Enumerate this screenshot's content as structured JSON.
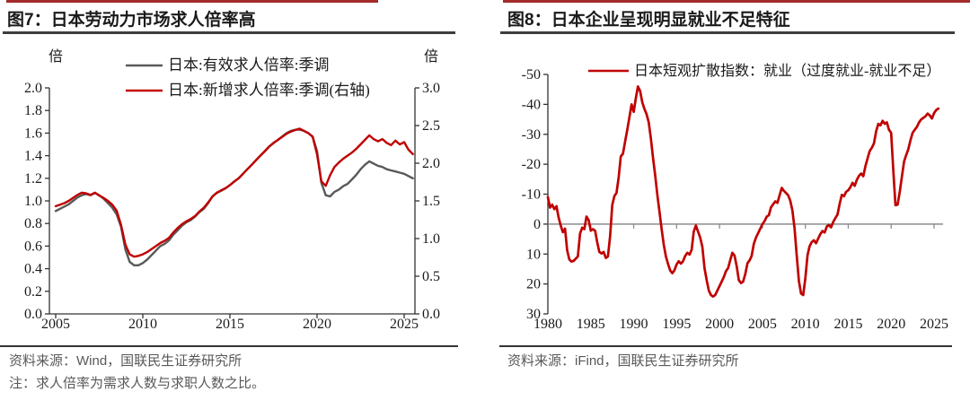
{
  "figures": [
    {
      "title": "图7：日本劳动力市场求人倍率高",
      "source": "资料来源：Wind，国联民生证券研究所",
      "note": "注：求人倍率为需求人数与求职人数之比。"
    },
    {
      "title": "图8：日本企业呈现明显就业不足特征",
      "source": "资料来源：iFind，国联民生证券研究所",
      "note": ""
    }
  ],
  "colors": {
    "red": "#C00000",
    "gray_series": "#595959",
    "axis": "#333333",
    "zero_line": "#8C8C8C",
    "title_rule": "#3d3d3d",
    "top_strip": "#A42B2B",
    "source_text": "#595959"
  },
  "chart_data": [
    {
      "type": "line",
      "title": "图7：日本劳动力市场求人倍率高",
      "left_axis": {
        "unit": "倍",
        "min": 0,
        "max": 2,
        "ticks": [
          0,
          0.2,
          0.4,
          0.6,
          0.8,
          1.0,
          1.2,
          1.4,
          1.6,
          1.8,
          2.0
        ],
        "tick_labels": [
          "0.0",
          "0.2",
          "0.4",
          "0.6",
          "0.8",
          "1.0",
          "1.2",
          "1.4",
          "1.6",
          "1.8",
          "2.0"
        ]
      },
      "right_axis": {
        "unit": "倍",
        "min": 0,
        "max": 3,
        "ticks": [
          0,
          0.5,
          1.0,
          1.5,
          2.0,
          2.5,
          3.0
        ],
        "tick_labels": [
          "0.0",
          "0.5",
          "1.0",
          "1.5",
          "2.0",
          "2.5",
          "3.0"
        ]
      },
      "x_axis": {
        "ticks": [
          2005,
          2010,
          2015,
          2020,
          2025
        ],
        "tick_labels": [
          "2005",
          "2010",
          "2015",
          "2020",
          "2025"
        ]
      },
      "legend_position": "top",
      "series": [
        {
          "name": "日本:有效求人倍率:季调",
          "axis": "left",
          "color": "#595959",
          "x_start": 2005,
          "x_step": 0.25,
          "values": [
            0.91,
            0.93,
            0.95,
            0.97,
            1.0,
            1.03,
            1.05,
            1.06,
            1.05,
            1.07,
            1.05,
            1.02,
            0.98,
            0.94,
            0.88,
            0.77,
            0.57,
            0.46,
            0.43,
            0.43,
            0.45,
            0.48,
            0.52,
            0.56,
            0.6,
            0.62,
            0.65,
            0.7,
            0.74,
            0.78,
            0.81,
            0.83,
            0.86,
            0.9,
            0.93,
            0.98,
            1.04,
            1.07,
            1.09,
            1.11,
            1.14,
            1.17,
            1.2,
            1.24,
            1.28,
            1.32,
            1.36,
            1.4,
            1.44,
            1.48,
            1.51,
            1.54,
            1.57,
            1.6,
            1.62,
            1.63,
            1.63,
            1.62,
            1.6,
            1.57,
            1.44,
            1.16,
            1.05,
            1.04,
            1.08,
            1.1,
            1.13,
            1.15,
            1.19,
            1.23,
            1.28,
            1.32,
            1.35,
            1.33,
            1.31,
            1.3,
            1.28,
            1.27,
            1.26,
            1.25,
            1.24,
            1.22,
            1.2
          ]
        },
        {
          "name": "日本:新增求人倍率:季调(右轴)",
          "axis": "right",
          "color": "#C00000",
          "x_start": 2005,
          "x_step": 0.25,
          "values": [
            1.43,
            1.45,
            1.47,
            1.5,
            1.54,
            1.58,
            1.61,
            1.6,
            1.58,
            1.61,
            1.57,
            1.54,
            1.5,
            1.45,
            1.37,
            1.18,
            0.92,
            0.79,
            0.76,
            0.77,
            0.79,
            0.82,
            0.86,
            0.9,
            0.94,
            0.97,
            1.01,
            1.08,
            1.14,
            1.19,
            1.23,
            1.26,
            1.3,
            1.36,
            1.41,
            1.48,
            1.56,
            1.61,
            1.64,
            1.67,
            1.71,
            1.76,
            1.8,
            1.86,
            1.92,
            1.98,
            2.04,
            2.1,
            2.16,
            2.22,
            2.27,
            2.31,
            2.35,
            2.39,
            2.42,
            2.44,
            2.46,
            2.43,
            2.4,
            2.35,
            2.12,
            1.76,
            1.7,
            1.84,
            1.95,
            2.01,
            2.06,
            2.1,
            2.14,
            2.19,
            2.25,
            2.31,
            2.37,
            2.32,
            2.29,
            2.32,
            2.27,
            2.24,
            2.3,
            2.25,
            2.28,
            2.18,
            2.12
          ]
        }
      ]
    },
    {
      "type": "line",
      "title": "图8：日本企业呈现明显就业不足特征",
      "left_axis": {
        "min": -50,
        "max": 30,
        "inverted": true,
        "ticks": [
          -50,
          -40,
          -30,
          -20,
          -10,
          0,
          10,
          20,
          30
        ],
        "tick_labels": [
          "-50",
          "-40",
          "-30",
          "-20",
          "-10",
          "0",
          "10",
          "20",
          "30"
        ]
      },
      "x_axis": {
        "ticks": [
          1980,
          1985,
          1990,
          1995,
          2000,
          2005,
          2010,
          2015,
          2020,
          2025
        ],
        "tick_labels": [
          "1980",
          "1985",
          "1990",
          "1995",
          "2000",
          "2005",
          "2010",
          "2015",
          "2020",
          "2025"
        ]
      },
      "zero_line": true,
      "legend_position": "top",
      "series": [
        {
          "name": "日本短观扩散指数：就业（过度就业-就业不足）",
          "axis": "left",
          "color": "#C00000",
          "x_start": 1980,
          "x_step": 0.25,
          "values": [
            -9,
            -5.5,
            -6.5,
            -5,
            -6,
            -2.3,
            0.5,
            2.7,
            1.5,
            8.8,
            11.8,
            12.5,
            12.3,
            11.5,
            10.8,
            3.2,
            1.2,
            1.7,
            -2.5,
            -1.3,
            2.2,
            1.7,
            2.2,
            6,
            9.3,
            9.8,
            9.3,
            11.3,
            10.8,
            4,
            -6.4,
            -9.4,
            -10.4,
            -15.5,
            -22.6,
            -23.5,
            -27.6,
            -31.5,
            -35.7,
            -40,
            -37.5,
            -42,
            -46,
            -44.5,
            -40.7,
            -38.5,
            -36.7,
            -34,
            -28.6,
            -22,
            -16.5,
            -10,
            -4.3,
            1.5,
            6.8,
            10.8,
            13.3,
            15.5,
            16.4,
            15.4,
            13.5,
            12.4,
            13.2,
            12.4,
            10.6,
            9.6,
            10.2,
            8.6,
            2.5,
            0.5,
            2.5,
            4.5,
            7.6,
            14.7,
            18.7,
            22.2,
            23.7,
            24.2,
            23.7,
            22.2,
            20.7,
            19.2,
            17.7,
            15.7,
            14.7,
            12,
            9.6,
            10.5,
            14,
            18.7,
            19.7,
            19.2,
            16.7,
            13.1,
            12.1,
            10.6,
            6.6,
            4.5,
            3,
            1.5,
            0,
            -1,
            -2.5,
            -3,
            -5.6,
            -6.6,
            -7.6,
            -7.1,
            -9.6,
            -12.1,
            -11.1,
            -10.4,
            -9.6,
            -7.8,
            -4.5,
            1.5,
            10.6,
            19,
            23.2,
            23.7,
            18,
            10.4,
            7.4,
            6,
            5.4,
            6.4,
            4.8,
            3.3,
            2.3,
            2.8,
            0.8,
            0.3,
            1.1,
            -0.7,
            -2,
            -3.2,
            -6.8,
            -9.8,
            -9.3,
            -10.8,
            -11.3,
            -12.3,
            -13.8,
            -12.8,
            -14.8,
            -16.1,
            -16.9,
            -16,
            -19.4,
            -21.9,
            -24.4,
            -25.5,
            -27,
            -31,
            -33.5,
            -33,
            -34.5,
            -33.5,
            -34,
            -31.5,
            -30.5,
            -18,
            -6.3,
            -6.5,
            -10.8,
            -15.9,
            -20.9,
            -23,
            -25,
            -28,
            -30.5,
            -31.5,
            -32.5,
            -34,
            -35,
            -35.5,
            -36,
            -36.9,
            -36.3,
            -35.3,
            -37.1,
            -38.1,
            -38.6
          ]
        }
      ]
    }
  ]
}
